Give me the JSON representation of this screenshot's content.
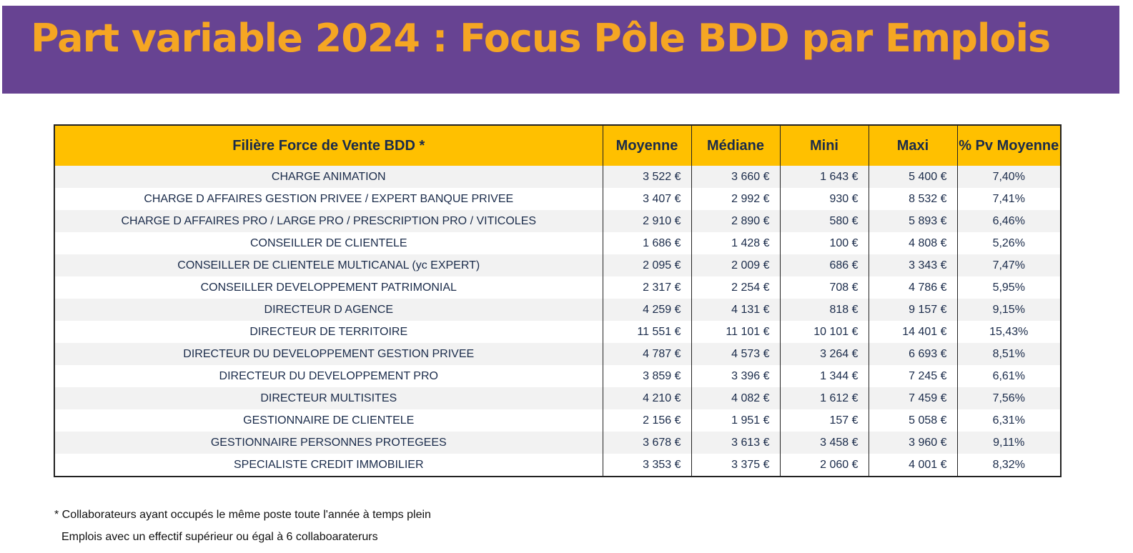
{
  "title": "Part variable 2024 : Focus Pôle BDD par Emplois",
  "colors": {
    "banner": "#674392",
    "title": "#f5a623",
    "header": "#ffc000",
    "row_alt": "#f2f2f2"
  },
  "table": {
    "headers": [
      "Filière Force de Vente BDD *",
      "Moyenne",
      "Médiane",
      "Mini",
      "Maxi",
      "% Pv Moyenne"
    ],
    "rows": [
      [
        "CHARGE ANIMATION",
        "3 522 €",
        "3 660 €",
        "1 643 €",
        "5 400 €",
        "7,40%"
      ],
      [
        "CHARGE D AFFAIRES GESTION PRIVEE / EXPERT BANQUE PRIVEE",
        "3 407 €",
        "2 992 €",
        "930 €",
        "8 532 €",
        "7,41%"
      ],
      [
        "CHARGE D AFFAIRES PRO / LARGE PRO / PRESCRIPTION PRO / VITICOLES",
        "2 910 €",
        "2 890 €",
        "580 €",
        "5 893 €",
        "6,46%"
      ],
      [
        "CONSEILLER DE CLIENTELE",
        "1 686 €",
        "1 428 €",
        "100 €",
        "4 808 €",
        "5,26%"
      ],
      [
        "CONSEILLER DE CLIENTELE MULTICANAL (yc EXPERT)",
        "2 095 €",
        "2 009 €",
        "686 €",
        "3 343 €",
        "7,47%"
      ],
      [
        "CONSEILLER DEVELOPPEMENT PATRIMONIAL",
        "2 317 €",
        "2 254 €",
        "708 €",
        "4 786 €",
        "5,95%"
      ],
      [
        "DIRECTEUR D AGENCE",
        "4 259 €",
        "4 131 €",
        "818 €",
        "9 157 €",
        "9,15%"
      ],
      [
        "DIRECTEUR DE TERRITOIRE",
        "11 551 €",
        "11 101 €",
        "10 101 €",
        "14 401 €",
        "15,43%"
      ],
      [
        "DIRECTEUR DU DEVELOPPEMENT GESTION PRIVEE",
        "4 787 €",
        "4 573 €",
        "3 264 €",
        "6 693 €",
        "8,51%"
      ],
      [
        "DIRECTEUR DU DEVELOPPEMENT PRO",
        "3 859 €",
        "3 396 €",
        "1 344 €",
        "7 245 €",
        "6,61%"
      ],
      [
        "DIRECTEUR MULTISITES",
        "4 210 €",
        "4 082 €",
        "1 612 €",
        "7 459 €",
        "7,56%"
      ],
      [
        "GESTIONNAIRE DE CLIENTELE",
        "2 156 €",
        "1 951 €",
        "157 €",
        "5 058 €",
        "6,31%"
      ],
      [
        "GESTIONNAIRE PERSONNES PROTEGEES",
        "3 678 €",
        "3 613 €",
        "3 458 €",
        "3 960 €",
        "9,11%"
      ],
      [
        "SPECIALISTE CREDIT IMMOBILIER",
        "3 353 €",
        "3 375 €",
        "2 060 €",
        "4 001 €",
        "8,32%"
      ]
    ]
  },
  "footnotes": [
    "* Collaborateurs ayant occupés le même poste toute l'année à temps plein",
    "Emplois avec un effectif supérieur ou égal à 6 collaboaraterurs"
  ]
}
